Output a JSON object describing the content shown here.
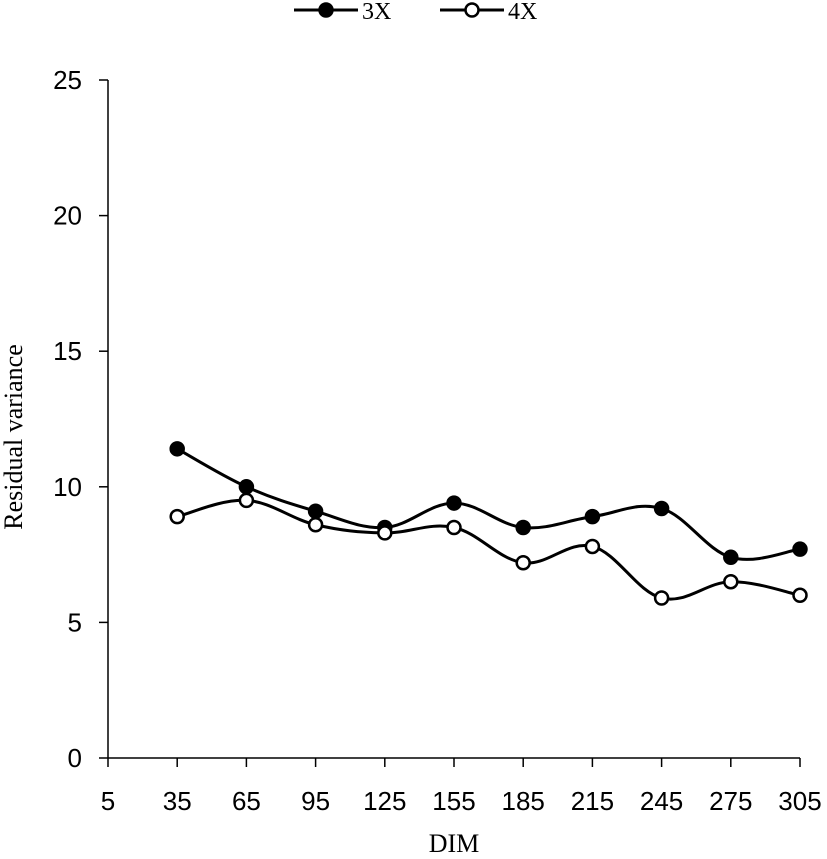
{
  "chart_data": {
    "type": "line",
    "xlabel": "DIM",
    "ylabel": "Residual variance",
    "x_ticks": [
      "5",
      "35",
      "65",
      "95",
      "125",
      "155",
      "185",
      "215",
      "245",
      "275",
      "305"
    ],
    "y_ticks": [
      "0",
      "5",
      "10",
      "15",
      "20",
      "25"
    ],
    "xlim": [
      5,
      305
    ],
    "ylim": [
      0,
      25
    ],
    "x": [
      35,
      65,
      95,
      125,
      155,
      185,
      215,
      245,
      275,
      305
    ],
    "series": [
      {
        "name": "3X",
        "marker": "filled-circle",
        "values": [
          11.4,
          10.0,
          9.1,
          8.5,
          9.4,
          8.5,
          8.9,
          9.2,
          7.4,
          7.7
        ]
      },
      {
        "name": "4X",
        "marker": "open-circle",
        "values": [
          8.9,
          9.5,
          8.6,
          8.3,
          8.5,
          7.2,
          7.8,
          5.9,
          6.5,
          6.0
        ]
      }
    ],
    "grid": false,
    "legend_position": "top-center",
    "colors": {
      "line": "#000000",
      "open_marker_fill": "#ffffff"
    }
  }
}
